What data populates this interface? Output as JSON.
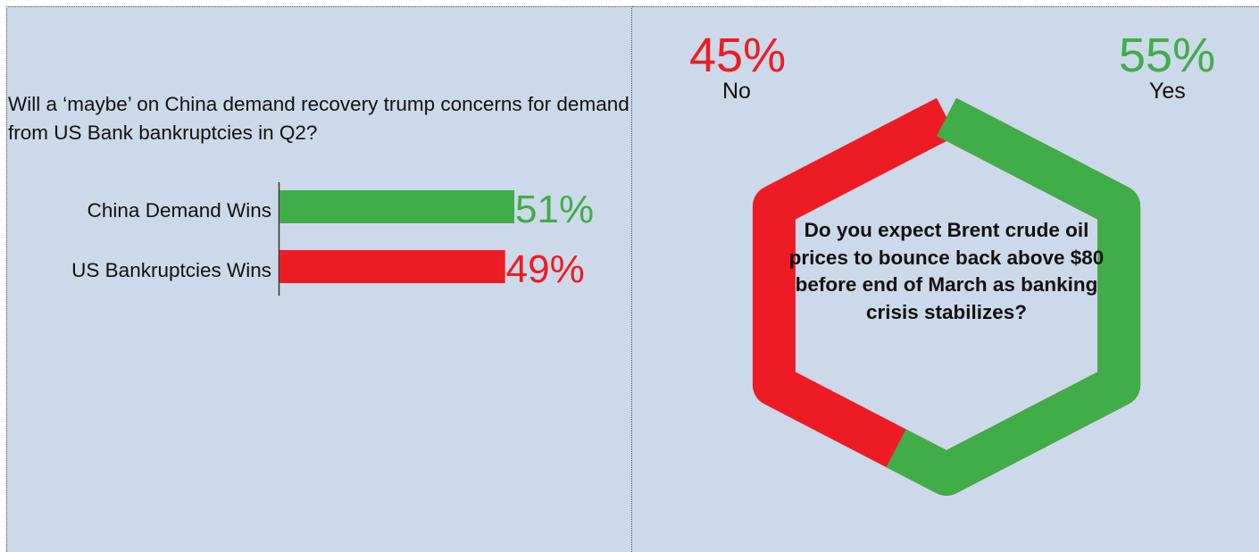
{
  "colors": {
    "green": "#41ad49",
    "red": "#ed1c24",
    "panel": "#ccd9ea",
    "axis": "#333333"
  },
  "chart_data": [
    {
      "type": "bar",
      "orientation": "horizontal",
      "title": "Will a ‘maybe’ on China demand recovery trump concerns for demand from US Bank bankruptcies in Q2?",
      "categories": [
        "China Demand Wins",
        "US Bankruptcies Wins"
      ],
      "values": [
        51,
        49
      ],
      "value_labels": [
        "51%",
        "49%"
      ],
      "colors": [
        "#41ad49",
        "#ed1c24"
      ],
      "unit": "%",
      "xlim": [
        0,
        100
      ]
    },
    {
      "type": "pie",
      "shape": "hexagonal donut",
      "title": "Do you expect Brent crude oil prices to bounce back above $80 before end of March as banking crisis stabilizes?",
      "categories": [
        "Yes",
        "No"
      ],
      "values": [
        55,
        45
      ],
      "value_labels": [
        "55%",
        "45%"
      ],
      "colors": [
        "#41ad49",
        "#ed1c24"
      ],
      "unit": "%"
    }
  ]
}
